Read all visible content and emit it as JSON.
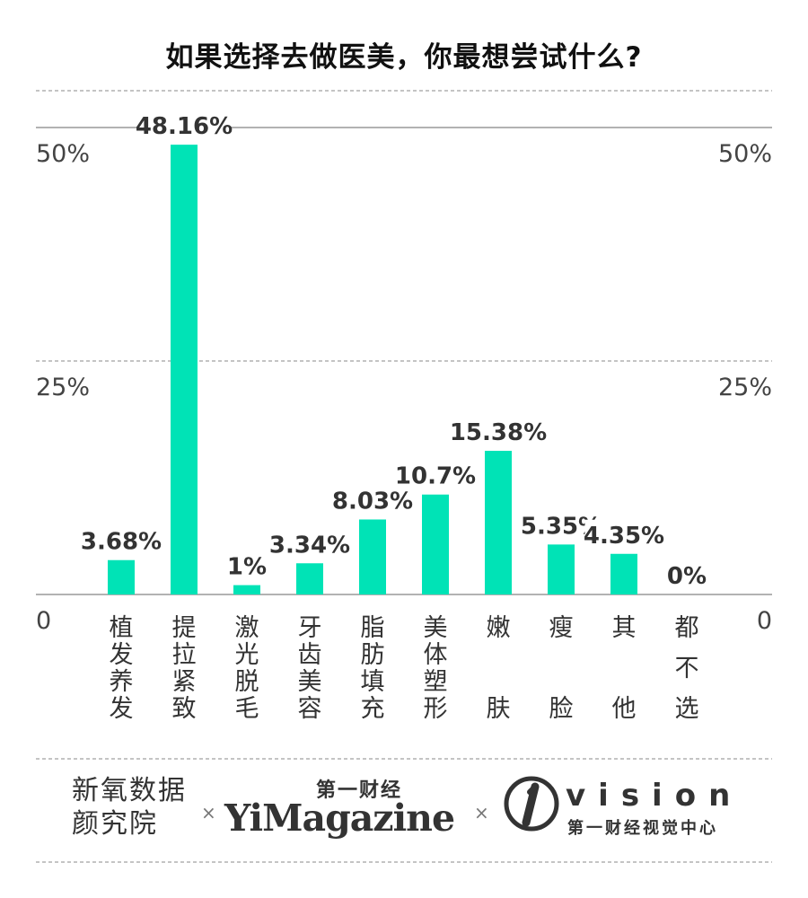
{
  "title": "如果选择去做医美，你最想尝试什么?",
  "chart_data": {
    "type": "bar",
    "categories": [
      "植发养发",
      "提拉紧致",
      "激光脱毛",
      "牙齿美容",
      "脂肪填充",
      "美体塑形",
      "嫩肤",
      "瘦脸",
      "其他",
      "都不选"
    ],
    "values": [
      3.68,
      48.16,
      1,
      3.34,
      8.03,
      10.7,
      15.38,
      5.35,
      4.35,
      0
    ],
    "value_labels": [
      "3.68%",
      "48.16%",
      "1%",
      "3.34%",
      "8.03%",
      "10.7%",
      "15.38%",
      "5.35%",
      "4.35%",
      "0%"
    ],
    "ylim": [
      0,
      50
    ],
    "yticks": [
      0,
      25,
      50
    ],
    "ytick_labels": [
      "0",
      "25%",
      "50%"
    ],
    "grid": true,
    "bar_color": "#00e3b6"
  },
  "footer": {
    "logo1_line1": "新氧数据",
    "logo1_line2": "颜究院",
    "separator": "×",
    "logo2_top": "第一财经",
    "logo2_main": "YiMagazine",
    "logo3_word": "vision",
    "logo3_sub": "第一财经视觉中心"
  }
}
